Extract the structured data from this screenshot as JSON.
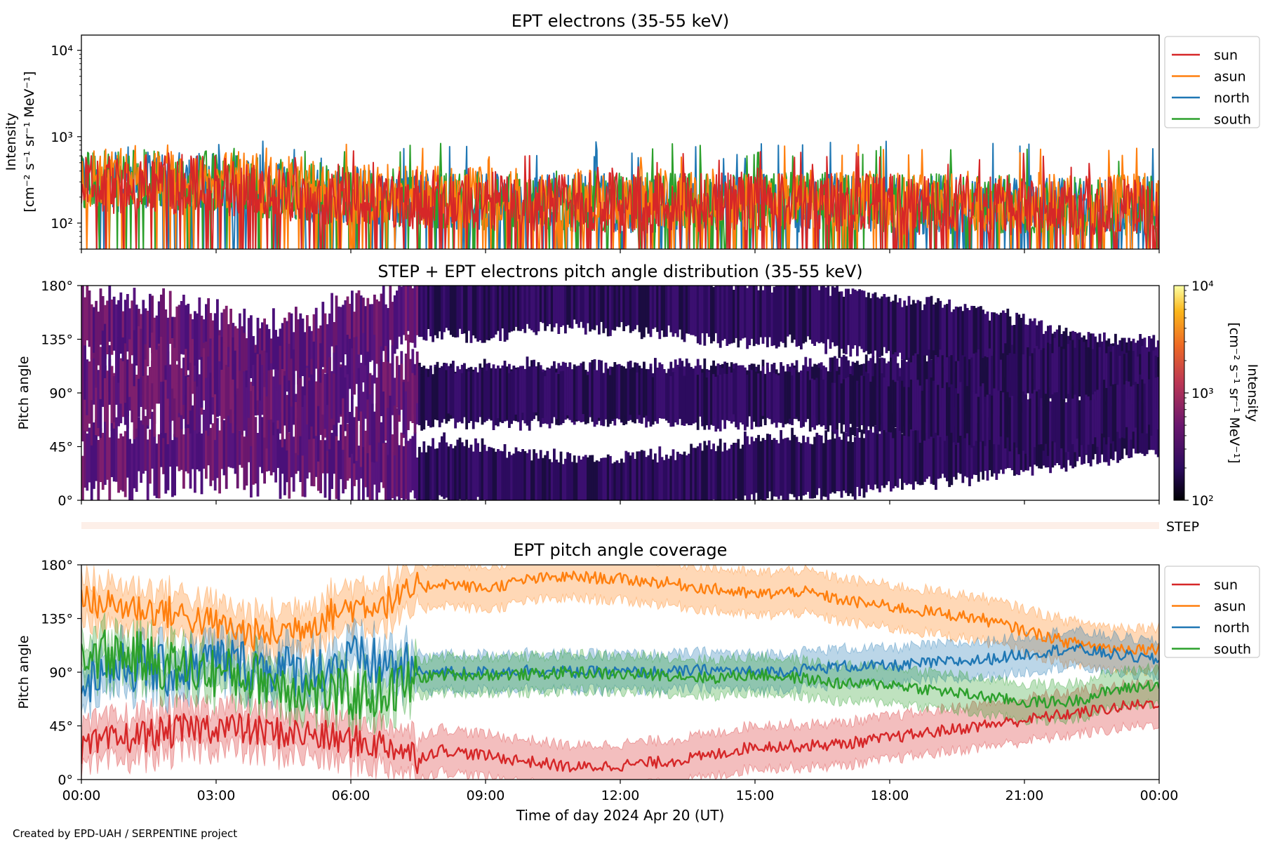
{
  "colors": {
    "sun": "#d62728",
    "asun": "#ff7f0e",
    "north": "#1f77b4",
    "south": "#2ca02c",
    "step_bar": "#fdefe8",
    "background": "#ffffff"
  },
  "footer": {
    "credit": "Created by EPD-UAH / SERPENTINE project"
  },
  "time_axis": {
    "label": "Time of day 2024 Apr 20 (UT)",
    "ticks": [
      "00:00",
      "03:00",
      "06:00",
      "09:00",
      "12:00",
      "15:00",
      "18:00",
      "21:00",
      "00:00"
    ],
    "range_hours": [
      0,
      24
    ]
  },
  "step_label": "STEP",
  "chart_data": [
    {
      "type": "line",
      "title": "EPT electrons (35-55 keV)",
      "ylabel_line1": "Intensity",
      "ylabel_line2": "[cm⁻² s⁻¹ sr⁻¹ MeV⁻¹]",
      "yscale": "log",
      "ylim": [
        50,
        15000
      ],
      "yticks": [
        {
          "value": 100,
          "label": "10²"
        },
        {
          "value": 1000,
          "label": "10³"
        },
        {
          "value": 10000,
          "label": "10⁴"
        }
      ],
      "legend": "top-right (outside)",
      "series": [
        {
          "name": "sun",
          "color": "#d62728",
          "hourly_level": [
            280,
            300,
            280,
            270,
            230,
            210,
            200,
            190,
            180,
            180,
            175,
            175,
            170,
            170,
            175,
            175,
            170,
            170,
            165,
            165,
            160,
            160,
            160,
            155
          ],
          "peak": 700
        },
        {
          "name": "asun",
          "color": "#ff7f0e",
          "hourly_level": [
            340,
            360,
            330,
            310,
            270,
            240,
            220,
            210,
            200,
            200,
            195,
            195,
            190,
            190,
            195,
            200,
            190,
            185,
            180,
            180,
            175,
            175,
            170,
            170
          ],
          "peak": 820
        },
        {
          "name": "north",
          "color": "#1f77b4",
          "hourly_level": [
            300,
            320,
            300,
            280,
            240,
            220,
            200,
            190,
            180,
            180,
            175,
            175,
            170,
            170,
            175,
            175,
            170,
            170,
            165,
            165,
            160,
            160,
            160,
            155
          ],
          "peak": 900
        },
        {
          "name": "south",
          "color": "#2ca02c",
          "hourly_level": [
            310,
            330,
            310,
            290,
            245,
            225,
            205,
            195,
            185,
            185,
            180,
            180,
            175,
            175,
            180,
            180,
            175,
            175,
            170,
            170,
            165,
            165,
            160,
            160
          ],
          "peak": 850
        }
      ]
    },
    {
      "type": "heatmap",
      "title": "STEP + EPT electrons pitch angle distribution (35-55 keV)",
      "ylabel": "Pitch angle",
      "ylim": [
        0,
        180
      ],
      "yticks": [
        "0°",
        "45°",
        "90°",
        "135°",
        "180°"
      ],
      "colorbar": {
        "label_line1": "Intensity",
        "label_line2": "[cm⁻² s⁻¹ sr⁻¹ MeV⁻¹]",
        "scale": "log",
        "range": [
          100,
          10000
        ],
        "ticks": [
          {
            "value": 100,
            "label": "10²"
          },
          {
            "value": 1000,
            "label": "10³"
          },
          {
            "value": 10000,
            "label": "10⁴"
          }
        ]
      },
      "cells": "per-time column; 4 bands at the sun/asun/north/south pitch angles, one ± band width, value ≈ intensity of each telescope"
    },
    {
      "type": "line",
      "title": "EPT pitch angle coverage",
      "ylabel": "Pitch angle",
      "ylim": [
        0,
        180
      ],
      "yticks": [
        {
          "value": 0,
          "label": "0°"
        },
        {
          "value": 45,
          "label": "45°"
        },
        {
          "value": 90,
          "label": "90°"
        },
        {
          "value": 135,
          "label": "135°"
        },
        {
          "value": 180,
          "label": "180°"
        }
      ],
      "legend": "top-right (outside)",
      "x_hours": [
        0,
        1,
        2,
        3,
        4,
        5,
        6,
        7,
        7.5,
        8,
        9,
        10,
        11,
        12,
        13,
        14,
        15,
        16,
        17,
        18,
        19,
        20,
        21,
        22,
        23,
        24
      ],
      "series": [
        {
          "name": "sun",
          "color": "#d62728",
          "band_halfwidth": 18,
          "values": [
            25,
            35,
            40,
            45,
            40,
            38,
            32,
            28,
            18,
            25,
            20,
            15,
            10,
            12,
            15,
            20,
            28,
            28,
            30,
            35,
            40,
            45,
            50,
            55,
            60,
            65
          ]
        },
        {
          "name": "asun",
          "color": "#ff7f0e",
          "band_halfwidth": 18,
          "values": [
            150,
            145,
            140,
            130,
            120,
            130,
            145,
            150,
            160,
            165,
            160,
            168,
            170,
            168,
            165,
            160,
            155,
            158,
            150,
            145,
            140,
            135,
            125,
            115,
            110,
            110
          ]
        },
        {
          "name": "north",
          "color": "#1f77b4",
          "band_halfwidth": 15,
          "values": [
            85,
            95,
            90,
            100,
            95,
            90,
            100,
            95,
            90,
            90,
            90,
            92,
            90,
            90,
            90,
            92,
            90,
            92,
            95,
            95,
            98,
            100,
            105,
            110,
            105,
            100
          ]
        },
        {
          "name": "south",
          "color": "#2ca02c",
          "band_halfwidth": 15,
          "values": [
            105,
            105,
            95,
            90,
            85,
            75,
            70,
            75,
            85,
            88,
            88,
            88,
            90,
            88,
            88,
            85,
            88,
            85,
            80,
            80,
            75,
            70,
            65,
            65,
            75,
            80
          ]
        }
      ]
    }
  ]
}
